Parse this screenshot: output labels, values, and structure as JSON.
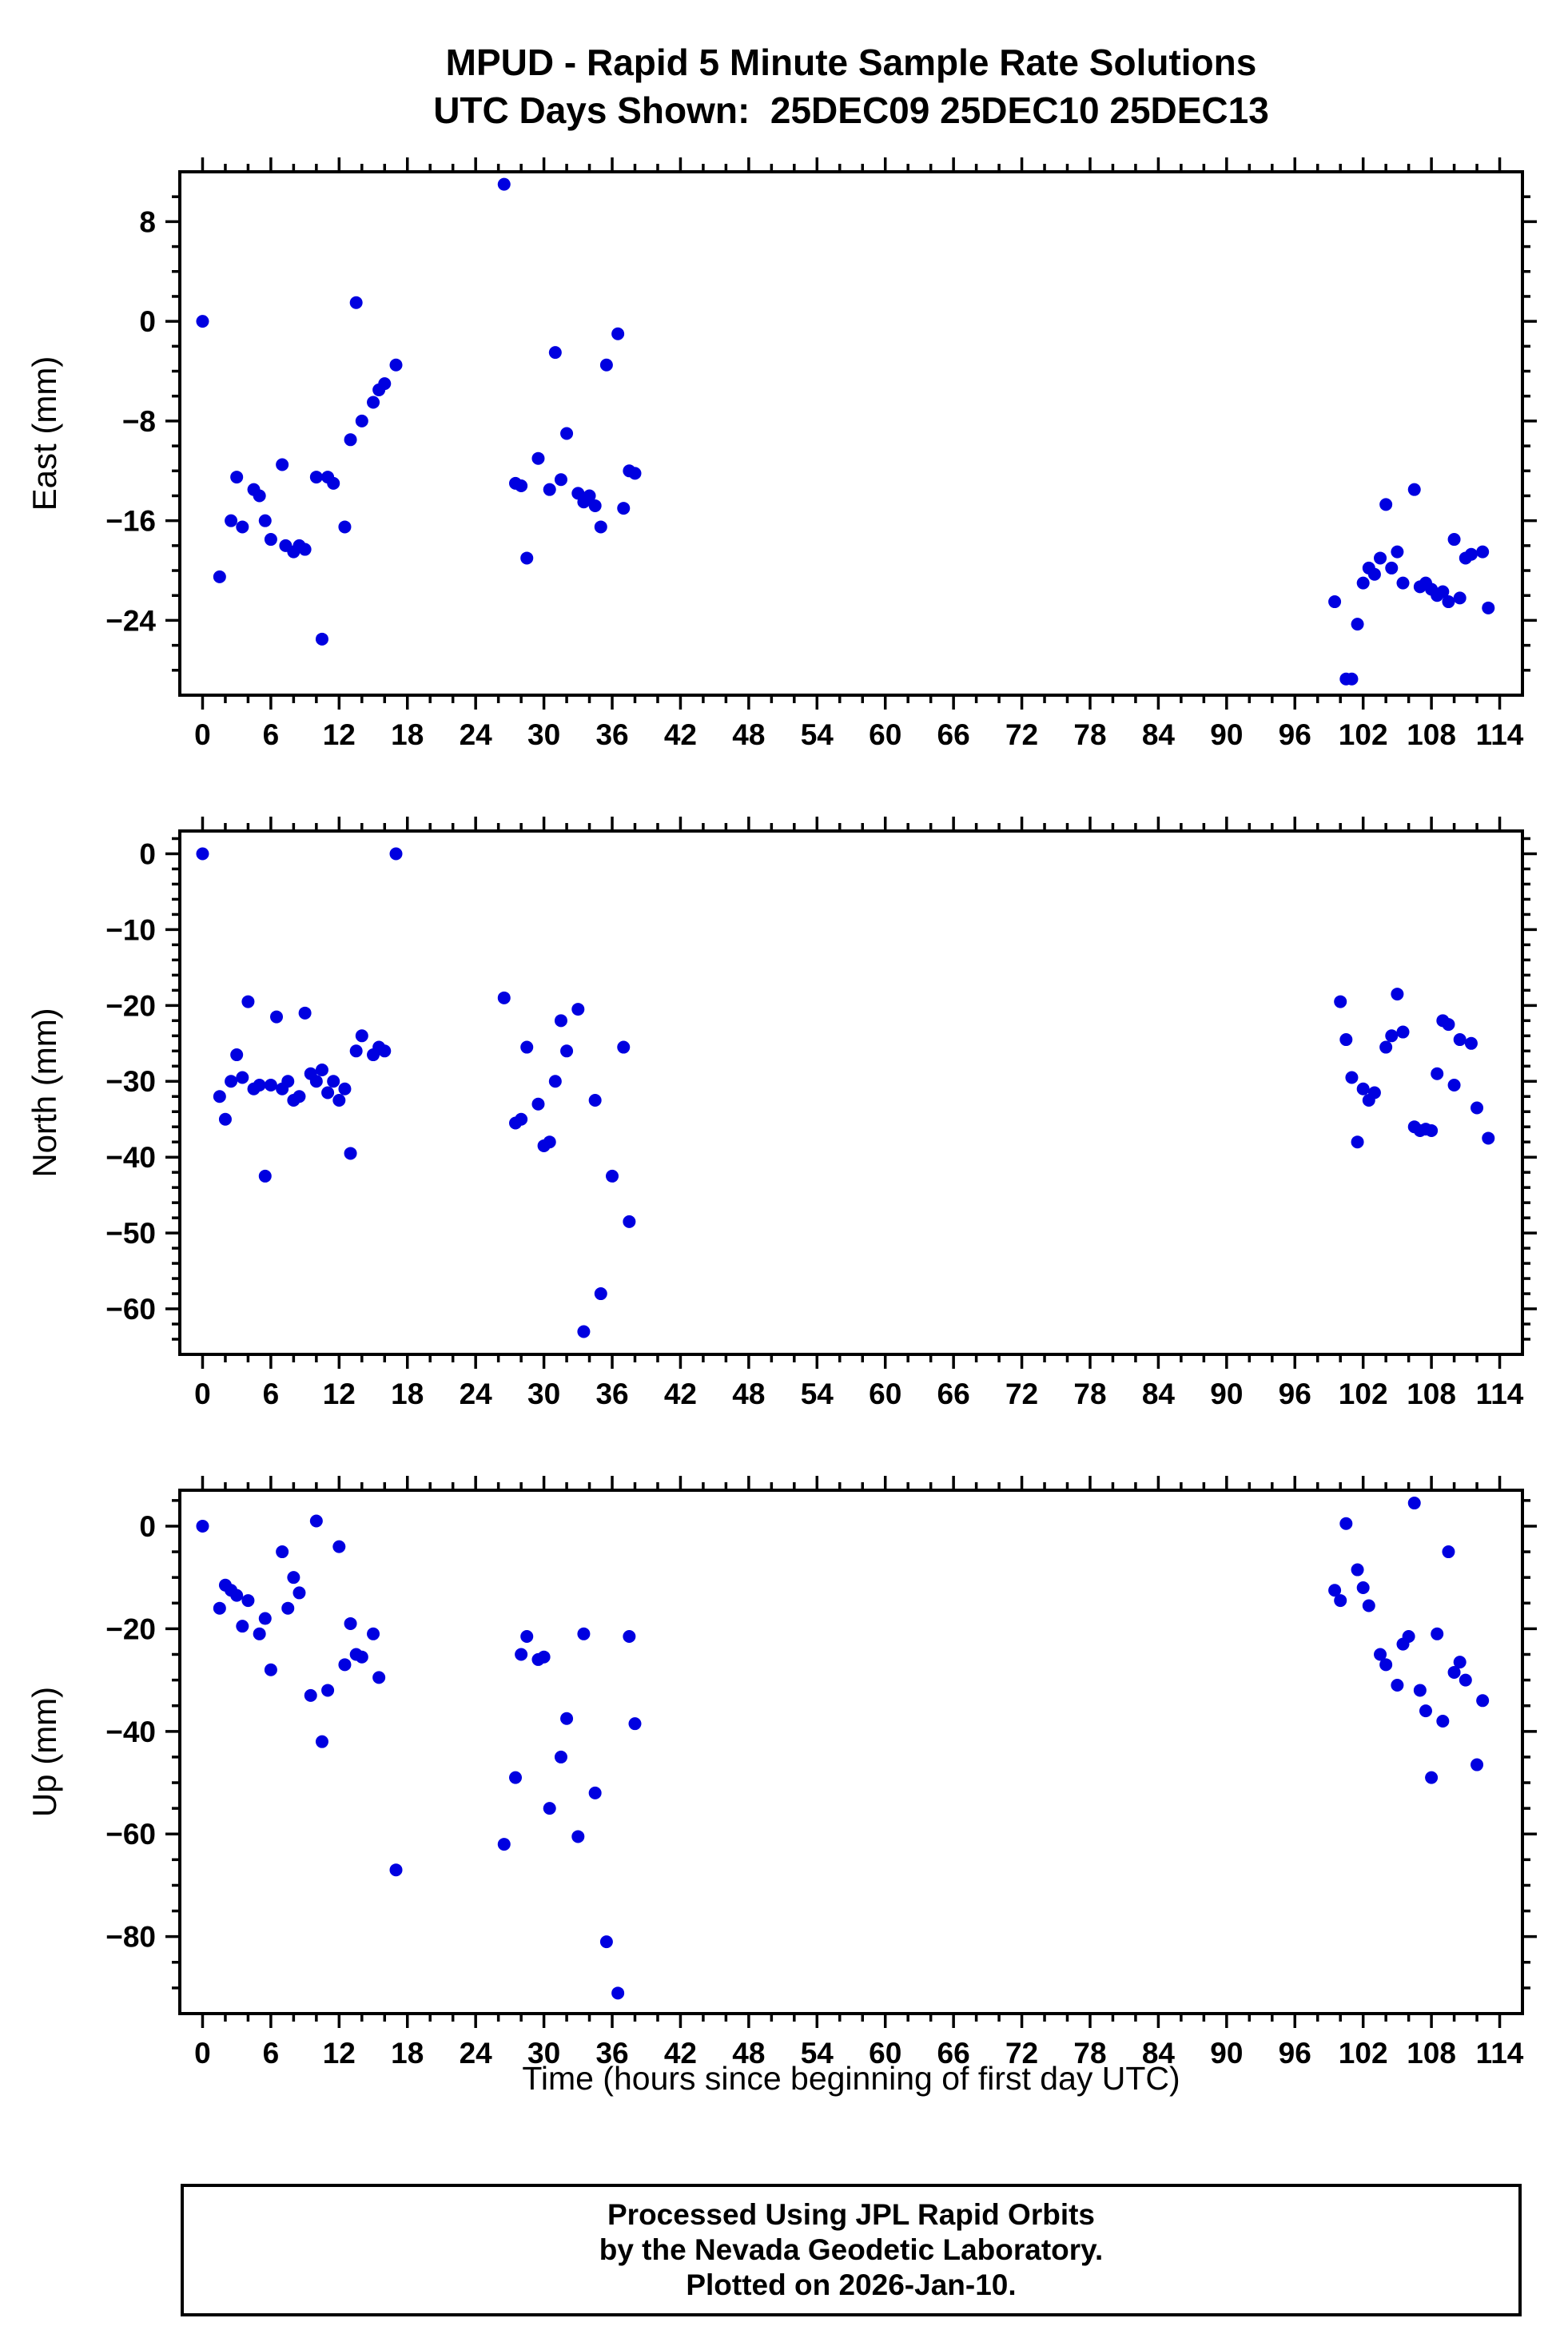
{
  "title": {
    "line1": "MPUD - Rapid 5 Minute Sample Rate Solutions",
    "line2": "UTC Days Shown:  25DEC09 25DEC10 25DEC13"
  },
  "xlabel": "Time (hours since beginning of first day UTC)",
  "footer": {
    "line1": "Processed Using JPL Rapid Orbits",
    "line2": "by the Nevada Geodetic Laboratory.",
    "line3": "Plotted on 2026-Jan-10."
  },
  "point_color": "#0000e0",
  "chart_data": [
    {
      "type": "scatter",
      "ylabel": "East (mm)",
      "xlim": [
        -2,
        116
      ],
      "ylim": [
        -30,
        12
      ],
      "xticks": [
        0,
        6,
        12,
        18,
        24,
        30,
        36,
        42,
        48,
        54,
        60,
        66,
        72,
        78,
        84,
        90,
        96,
        102,
        108,
        114
      ],
      "yticks": [
        8,
        0,
        -8,
        -16,
        -24
      ],
      "x_minor_step": 2,
      "y_minor_step": 2,
      "grid": false,
      "points": [
        [
          0,
          0
        ],
        [
          1.5,
          -20.5
        ],
        [
          2.5,
          -16
        ],
        [
          3,
          -12.5
        ],
        [
          3.5,
          -16.5
        ],
        [
          4.5,
          -13.5
        ],
        [
          5,
          -14
        ],
        [
          5.5,
          -16
        ],
        [
          6,
          -17.5
        ],
        [
          7,
          -11.5
        ],
        [
          7.3,
          -18
        ],
        [
          8,
          -18.5
        ],
        [
          8.5,
          -18
        ],
        [
          9,
          -18.3
        ],
        [
          10,
          -12.5
        ],
        [
          10.5,
          -25.5
        ],
        [
          11,
          -12.5
        ],
        [
          11.5,
          -13
        ],
        [
          12.5,
          -16.5
        ],
        [
          13,
          -9.5
        ],
        [
          13.5,
          1.5
        ],
        [
          14,
          -8
        ],
        [
          15,
          -6.5
        ],
        [
          15.5,
          -5.5
        ],
        [
          16,
          -5
        ],
        [
          17,
          -3.5
        ],
        [
          26.5,
          11
        ],
        [
          27.5,
          -13
        ],
        [
          28,
          -13.2
        ],
        [
          28.5,
          -19
        ],
        [
          29.5,
          -11
        ],
        [
          30.5,
          -13.5
        ],
        [
          31,
          -2.5
        ],
        [
          31.5,
          -12.7
        ],
        [
          32,
          -9
        ],
        [
          33,
          -13.8
        ],
        [
          33.5,
          -14.5
        ],
        [
          34,
          -14
        ],
        [
          34.5,
          -14.8
        ],
        [
          35,
          -16.5
        ],
        [
          35.5,
          -3.5
        ],
        [
          36.5,
          -1
        ],
        [
          37,
          -15
        ],
        [
          37.5,
          -12
        ],
        [
          38,
          -12.2
        ],
        [
          99.5,
          -22.5
        ],
        [
          100.5,
          -28.7
        ],
        [
          101,
          -28.7
        ],
        [
          101.5,
          -24.3
        ],
        [
          102,
          -21
        ],
        [
          102.5,
          -19.8
        ],
        [
          103,
          -20.3
        ],
        [
          103.5,
          -19
        ],
        [
          104,
          -14.7
        ],
        [
          104.5,
          -19.8
        ],
        [
          105,
          -18.5
        ],
        [
          105.5,
          -21
        ],
        [
          106.5,
          -13.5
        ],
        [
          107,
          -21.3
        ],
        [
          107.5,
          -21
        ],
        [
          108,
          -21.5
        ],
        [
          108.5,
          -22
        ],
        [
          109,
          -21.7
        ],
        [
          109.5,
          -22.5
        ],
        [
          110,
          -17.5
        ],
        [
          110.5,
          -22.2
        ],
        [
          111,
          -19
        ],
        [
          111.5,
          -18.7
        ],
        [
          112.5,
          -18.5
        ],
        [
          113,
          -23
        ]
      ]
    },
    {
      "type": "scatter",
      "ylabel": "North (mm)",
      "xlim": [
        -2,
        116
      ],
      "ylim": [
        -66,
        3
      ],
      "xticks": [
        0,
        6,
        12,
        18,
        24,
        30,
        36,
        42,
        48,
        54,
        60,
        66,
        72,
        78,
        84,
        90,
        96,
        102,
        108,
        114
      ],
      "yticks": [
        0,
        -10,
        -20,
        -30,
        -40,
        -50,
        -60
      ],
      "x_minor_step": 2,
      "y_minor_step": 2,
      "grid": false,
      "points": [
        [
          0,
          0
        ],
        [
          1.5,
          -32
        ],
        [
          2,
          -35
        ],
        [
          2.5,
          -30
        ],
        [
          3,
          -26.5
        ],
        [
          3.5,
          -29.5
        ],
        [
          4,
          -19.5
        ],
        [
          4.5,
          -31
        ],
        [
          5,
          -30.5
        ],
        [
          5.5,
          -42.5
        ],
        [
          6,
          -30.5
        ],
        [
          6.5,
          -21.5
        ],
        [
          7,
          -31
        ],
        [
          7.5,
          -30
        ],
        [
          8,
          -32.5
        ],
        [
          8.5,
          -32
        ],
        [
          9,
          -21
        ],
        [
          9.5,
          -29
        ],
        [
          10,
          -30
        ],
        [
          10.5,
          -28.5
        ],
        [
          11,
          -31.5
        ],
        [
          11.5,
          -30
        ],
        [
          12,
          -32.5
        ],
        [
          12.5,
          -31
        ],
        [
          13,
          -39.5
        ],
        [
          13.5,
          -26
        ],
        [
          14,
          -24
        ],
        [
          15,
          -26.5
        ],
        [
          15.5,
          -25.5
        ],
        [
          16,
          -26
        ],
        [
          17,
          0
        ],
        [
          26.5,
          -19
        ],
        [
          27.5,
          -35.5
        ],
        [
          28,
          -35
        ],
        [
          28.5,
          -25.5
        ],
        [
          29.5,
          -33
        ],
        [
          30,
          -38.5
        ],
        [
          30.5,
          -38
        ],
        [
          31,
          -30
        ],
        [
          31.5,
          -22
        ],
        [
          32,
          -26
        ],
        [
          33,
          -20.5
        ],
        [
          33.5,
          -63
        ],
        [
          34.5,
          -32.5
        ],
        [
          35,
          -58
        ],
        [
          36,
          -42.5
        ],
        [
          37,
          -25.5
        ],
        [
          37.5,
          -48.5
        ],
        [
          100,
          -19.5
        ],
        [
          100.5,
          -24.5
        ],
        [
          101,
          -29.5
        ],
        [
          101.5,
          -38
        ],
        [
          102,
          -31
        ],
        [
          102.5,
          -32.5
        ],
        [
          103,
          -31.5
        ],
        [
          104,
          -25.5
        ],
        [
          104.5,
          -24
        ],
        [
          105,
          -18.5
        ],
        [
          105.5,
          -23.5
        ],
        [
          106.5,
          -36
        ],
        [
          107,
          -36.5
        ],
        [
          107.5,
          -36.3
        ],
        [
          108,
          -36.5
        ],
        [
          108.5,
          -29
        ],
        [
          109,
          -22
        ],
        [
          109.5,
          -22.5
        ],
        [
          110,
          -30.5
        ],
        [
          110.5,
          -24.5
        ],
        [
          111.5,
          -25
        ],
        [
          112,
          -33.5
        ],
        [
          113,
          -37.5
        ]
      ]
    },
    {
      "type": "scatter",
      "ylabel": "Up (mm)",
      "xlim": [
        -2,
        116
      ],
      "ylim": [
        -95,
        7
      ],
      "xticks": [
        0,
        6,
        12,
        18,
        24,
        30,
        36,
        42,
        48,
        54,
        60,
        66,
        72,
        78,
        84,
        90,
        96,
        102,
        108,
        114
      ],
      "yticks": [
        0,
        -20,
        -40,
        -60,
        -80
      ],
      "x_minor_step": 2,
      "y_minor_step": 5,
      "grid": false,
      "points": [
        [
          0,
          0
        ],
        [
          1.5,
          -16
        ],
        [
          2,
          -11.5
        ],
        [
          2.5,
          -12.5
        ],
        [
          3,
          -13.5
        ],
        [
          3.5,
          -19.5
        ],
        [
          4,
          -14.5
        ],
        [
          5,
          -21
        ],
        [
          5.5,
          -18
        ],
        [
          6,
          -28
        ],
        [
          7,
          -5
        ],
        [
          7.5,
          -16
        ],
        [
          8,
          -10
        ],
        [
          8.5,
          -13
        ],
        [
          9.5,
          -33
        ],
        [
          10,
          1
        ],
        [
          10.5,
          -42
        ],
        [
          11,
          -32
        ],
        [
          12,
          -4
        ],
        [
          12.5,
          -27
        ],
        [
          13,
          -19
        ],
        [
          13.5,
          -25
        ],
        [
          14,
          -25.5
        ],
        [
          15,
          -21
        ],
        [
          15.5,
          -29.5
        ],
        [
          17,
          -67
        ],
        [
          26.5,
          -62
        ],
        [
          27.5,
          -49
        ],
        [
          28,
          -25
        ],
        [
          28.5,
          -21.5
        ],
        [
          29.5,
          -26
        ],
        [
          30,
          -25.5
        ],
        [
          30.5,
          -55
        ],
        [
          31.5,
          -45
        ],
        [
          32,
          -37.5
        ],
        [
          33,
          -60.5
        ],
        [
          33.5,
          -21
        ],
        [
          34.5,
          -52
        ],
        [
          35.5,
          -81
        ],
        [
          36.5,
          -91
        ],
        [
          37.5,
          -21.5
        ],
        [
          38,
          -38.5
        ],
        [
          99.5,
          -12.5
        ],
        [
          100,
          -14.5
        ],
        [
          100.5,
          0.5
        ],
        [
          101.5,
          -8.5
        ],
        [
          102,
          -12
        ],
        [
          102.5,
          -15.5
        ],
        [
          103.5,
          -25
        ],
        [
          104,
          -27
        ],
        [
          105,
          -31
        ],
        [
          105.5,
          -23
        ],
        [
          106,
          -21.5
        ],
        [
          106.5,
          4.5
        ],
        [
          107,
          -32
        ],
        [
          107.5,
          -36
        ],
        [
          108,
          -49
        ],
        [
          108.5,
          -21
        ],
        [
          109,
          -38
        ],
        [
          109.5,
          -5
        ],
        [
          110,
          -28.5
        ],
        [
          110.5,
          -26.5
        ],
        [
          111,
          -30
        ],
        [
          112,
          -46.5
        ],
        [
          112.5,
          -34
        ]
      ]
    }
  ]
}
